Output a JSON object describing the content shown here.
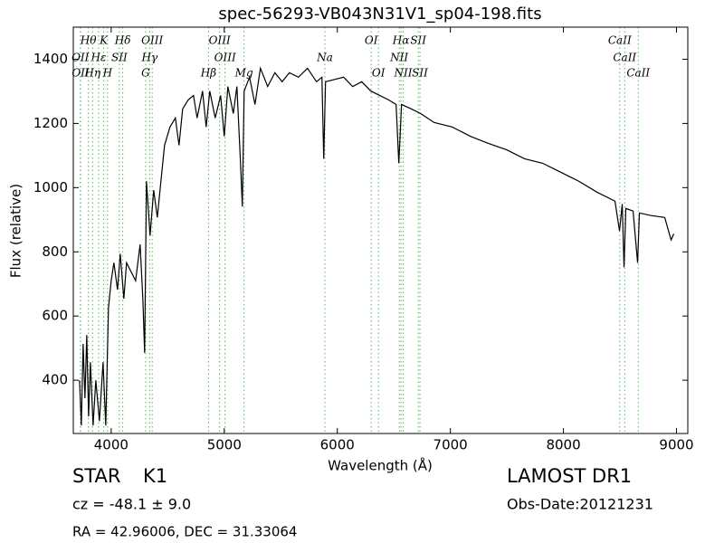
{
  "chart_data": {
    "type": "line",
    "title": "spec-56293-VB043N31V1_sp04-198.fits",
    "xlabel": "Wavelength (Å)",
    "ylabel": "Flux (relative)",
    "xlim": [
      3665,
      9100
    ],
    "ylim": [
      234,
      1500
    ],
    "xticks": [
      4000,
      5000,
      6000,
      7000,
      8000,
      9000
    ],
    "yticks": [
      400,
      600,
      800,
      1000,
      1200,
      1400
    ],
    "color": "#000000",
    "line_color": "#55bb55",
    "x": [
      3720,
      3736,
      3752,
      3768,
      3784,
      3800,
      3816,
      3840,
      3864,
      3896,
      3928,
      3952,
      3976,
      4000,
      4024,
      4056,
      4080,
      4112,
      4136,
      4176,
      4216,
      4256,
      4280,
      4296,
      4312,
      4344,
      4376,
      4408,
      4440,
      4472,
      4520,
      4568,
      4600,
      4632,
      4680,
      4728,
      4760,
      4808,
      4840,
      4872,
      4920,
      4968,
      5000,
      5032,
      5080,
      5112,
      5144,
      5160,
      5176,
      5224,
      5272,
      5320,
      5384,
      5448,
      5512,
      5576,
      5656,
      5736,
      5816,
      5864,
      5880,
      5896,
      6056,
      6136,
      6216,
      6296,
      6376,
      6456,
      6520,
      6544,
      6568,
      6656,
      6736,
      6856,
      7016,
      7176,
      7336,
      7496,
      7656,
      7816,
      7976,
      8136,
      8296,
      8456,
      8496,
      8520,
      8536,
      8552,
      8616,
      8656,
      8672,
      8776,
      8896,
      8952,
      8976
    ],
    "values": [
      400,
      259,
      513,
      344,
      541,
      287,
      456,
      259,
      400,
      273,
      456,
      259,
      625,
      710,
      766,
      682,
      794,
      654,
      766,
      738,
      710,
      823,
      654,
      485,
      1020,
      851,
      992,
      907,
      1020,
      1132,
      1189,
      1217,
      1132,
      1245,
      1273,
      1287,
      1217,
      1301,
      1189,
      1301,
      1217,
      1287,
      1160,
      1315,
      1231,
      1315,
      1076,
      941,
      1301,
      1344,
      1259,
      1372,
      1315,
      1358,
      1330,
      1358,
      1344,
      1372,
      1330,
      1344,
      1090,
      1330,
      1344,
      1315,
      1330,
      1301,
      1287,
      1273,
      1259,
      1076,
      1259,
      1245,
      1231,
      1203,
      1189,
      1160,
      1138,
      1118,
      1090,
      1076,
      1048,
      1020,
      986,
      958,
      865,
      949,
      752,
      935,
      927,
      766,
      921,
      913,
      907,
      837,
      856
    ],
    "lines": [
      {
        "label": "Hθ",
        "x": 3798
      },
      {
        "label": "K",
        "x": 3934
      },
      {
        "label": "Hδ",
        "x": 4102
      },
      {
        "label": "OIII",
        "x": 4363
      },
      {
        "label": "OIII",
        "x": 4959
      },
      {
        "label": "OI",
        "x": 6300
      },
      {
        "label": "Hα",
        "x": 6563
      },
      {
        "label": "SII",
        "x": 6716
      },
      {
        "label": "CaII",
        "x": 8498
      },
      {
        "label": "OII",
        "x": 3727
      },
      {
        "label": "Hε",
        "x": 3889
      },
      {
        "label": "SII",
        "x": 4072
      },
      {
        "label": "Hγ",
        "x": 4340
      },
      {
        "label": "OIII",
        "x": 5007
      },
      {
        "label": "Na",
        "x": 5890
      },
      {
        "label": "NII",
        "x": 6548
      },
      {
        "label": "CaII",
        "x": 8542
      },
      {
        "label": "OII",
        "x": 3729
      },
      {
        "label": "Hη",
        "x": 3835
      },
      {
        "label": "H",
        "x": 3968
      },
      {
        "label": "G",
        "x": 4305
      },
      {
        "label": "Hβ",
        "x": 4861
      },
      {
        "label": "Mg",
        "x": 5175
      },
      {
        "label": "OI",
        "x": 6364
      },
      {
        "label": "NII",
        "x": 6583
      },
      {
        "label": "SII",
        "x": 6731
      },
      {
        "label": "CaII",
        "x": 8662
      }
    ]
  },
  "object_class": "STAR",
  "subclass": "K1",
  "survey": "LAMOST DR1",
  "cz": "cz = -48.1 ± 9.0",
  "obs_date": "Obs-Date:20121231",
  "coords": "RA = 42.96006, DEC = 31.33064"
}
